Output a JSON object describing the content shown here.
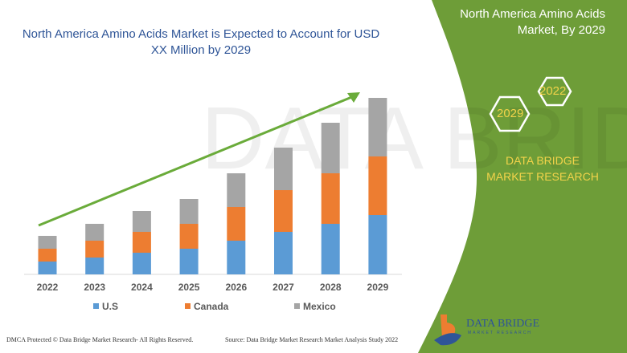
{
  "header": {
    "title": "North America Amino Acids Market is Expected to Account for USD XX Million by 2029"
  },
  "side_panel": {
    "title": "North America Amino Acids Market, By 2029",
    "hex_years": [
      "2022",
      "2029"
    ],
    "brand": "DATA BRIDGE MARKET RESEARCH",
    "logo_text": "DATA BRIDGE",
    "logo_subtext": "MARKET RESEARCH"
  },
  "footer": {
    "left": "DMCA Protected © Data Bridge Market Research- All Rights Reserved.",
    "right": "Source: Data Bridge Market Research Market Analysis Study 2022"
  },
  "colors": {
    "us": "#5b9bd5",
    "canada": "#ed7d31",
    "mexico": "#a5a5a5",
    "panel": "#6e9d38",
    "arrow": "#6aab3a"
  },
  "chart_data": {
    "type": "bar",
    "stacked": true,
    "title": "",
    "xlabel": "",
    "ylabel": "",
    "grid": false,
    "legend_position": "bottom",
    "trend_arrow": true,
    "categories": [
      "2022",
      "2023",
      "2024",
      "2025",
      "2026",
      "2027",
      "2028",
      "2029"
    ],
    "series": [
      {
        "name": "U.S",
        "values": [
          16,
          21,
          27,
          32,
          42,
          53,
          63,
          74
        ]
      },
      {
        "name": "Canada",
        "values": [
          16,
          21,
          26,
          31,
          42,
          52,
          63,
          73
        ]
      },
      {
        "name": "Mexico",
        "values": [
          16,
          21,
          26,
          31,
          42,
          53,
          63,
          73
        ]
      }
    ],
    "ylim": [
      0,
      232
    ]
  }
}
